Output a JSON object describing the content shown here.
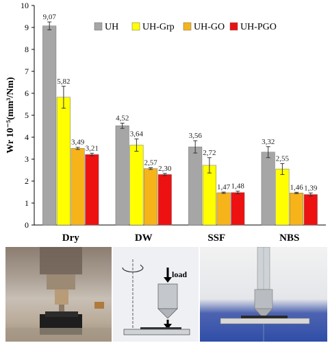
{
  "chart_data": {
    "type": "bar",
    "ylabel": "Wr 10⁻⁵(mm³/Nm)",
    "ylim": [
      0,
      10
    ],
    "yticks": [
      "0",
      "1",
      "2",
      "3",
      "4",
      "5",
      "6",
      "7",
      "8",
      "9",
      "10"
    ],
    "categories": [
      "Dry",
      "DW",
      "SSF",
      "NBS"
    ],
    "legend_position": "top-right",
    "grid": false,
    "series": [
      {
        "name": "UH",
        "color": "#a6a6a6",
        "values": [
          9.07,
          4.52,
          3.56,
          3.32
        ],
        "labels": [
          "9,07",
          "4,52",
          "3,56",
          "3,32"
        ],
        "errors": [
          0.18,
          0.12,
          0.28,
          0.25
        ]
      },
      {
        "name": "UH-Grp",
        "color": "#ffff00",
        "values": [
          5.82,
          3.64,
          2.72,
          2.55
        ],
        "labels": [
          "5,82",
          "3,64",
          "2,72",
          "2,55"
        ],
        "errors": [
          0.5,
          0.28,
          0.35,
          0.25
        ]
      },
      {
        "name": "UH-GO",
        "color": "#f6b41a",
        "values": [
          3.49,
          2.57,
          1.47,
          1.46
        ],
        "labels": [
          "3,49",
          "2,57",
          "1,47",
          "1,46"
        ],
        "errors": [
          0.05,
          0.04,
          0.03,
          0.03
        ]
      },
      {
        "name": "UH-PGO",
        "color": "#ee1111",
        "values": [
          3.21,
          2.3,
          1.48,
          1.39
        ],
        "labels": [
          "3,21",
          "2,30",
          "1,48",
          "1,39"
        ],
        "errors": [
          0.06,
          0.05,
          0.06,
          0.07
        ]
      }
    ]
  },
  "photos": {
    "schematic_load_label": "load"
  }
}
